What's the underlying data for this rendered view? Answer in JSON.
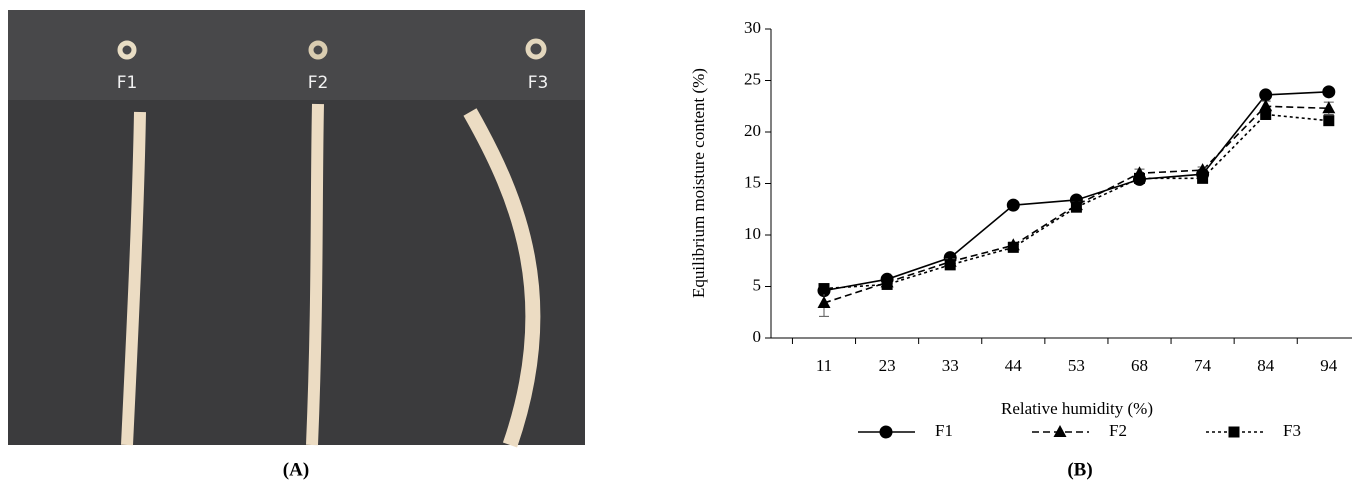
{
  "photo": {
    "labels": [
      "F1",
      "F2",
      "F3"
    ],
    "caption": "(A)"
  },
  "chart_data": {
    "type": "line",
    "caption": "(B)",
    "x_label": "Relative humidity (%)",
    "y_label": "Equilibrium moisture content (%)",
    "categories": [
      "11",
      "23",
      "33",
      "44",
      "53",
      "68",
      "74",
      "84",
      "94"
    ],
    "ylim": [
      0,
      30
    ],
    "yticks": [
      0,
      5,
      10,
      15,
      20,
      25,
      30
    ],
    "grid": false,
    "legend": "bottom",
    "series": [
      {
        "name": "F1",
        "color": "#000000",
        "marker": "circle",
        "dash": "solid",
        "values": [
          4.6,
          5.7,
          7.8,
          12.9,
          13.4,
          15.4,
          15.9,
          23.6,
          23.9
        ]
      },
      {
        "name": "F2",
        "color": "#000000",
        "marker": "triangle",
        "dash": "dashed",
        "values": [
          3.4,
          5.4,
          7.4,
          9.0,
          12.9,
          16.0,
          16.3,
          22.5,
          22.3
        ],
        "errors": [
          1.3,
          0.2,
          0.3,
          0.3,
          0.3,
          0.4,
          0.3,
          0.5,
          0.6
        ]
      },
      {
        "name": "F3",
        "color": "#000000",
        "marker": "square",
        "dash": "dotted",
        "values": [
          4.8,
          5.2,
          7.1,
          8.8,
          12.7,
          15.5,
          15.5,
          21.7,
          21.1
        ]
      }
    ]
  }
}
